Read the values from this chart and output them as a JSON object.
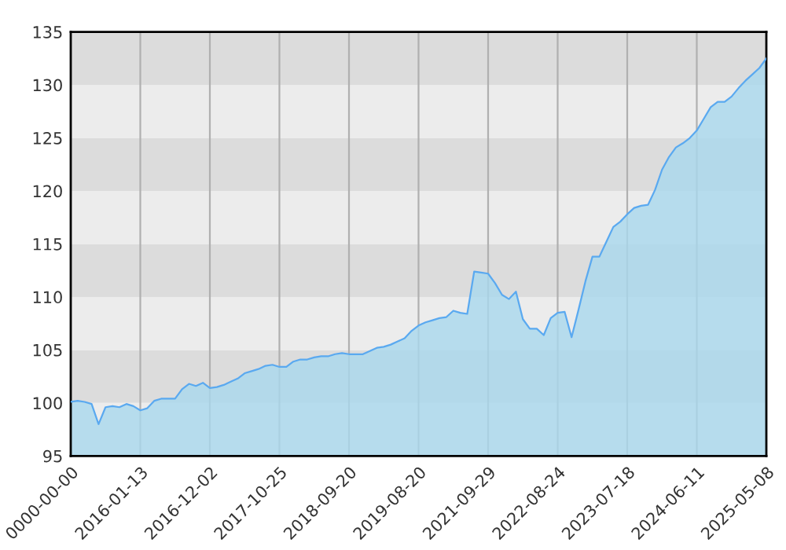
{
  "chart_data": {
    "type": "area",
    "categories": [
      "0000-00-00",
      null,
      null,
      null,
      null,
      null,
      null,
      null,
      null,
      null,
      "2016-01-13",
      null,
      null,
      null,
      null,
      null,
      null,
      null,
      null,
      null,
      "2016-12-02",
      null,
      null,
      null,
      null,
      null,
      null,
      null,
      null,
      null,
      "2017-10-25",
      null,
      null,
      null,
      null,
      null,
      null,
      null,
      null,
      null,
      "2018-09-20",
      null,
      null,
      null,
      null,
      null,
      null,
      null,
      null,
      null,
      "2019-08-20",
      null,
      null,
      null,
      null,
      null,
      null,
      null,
      null,
      null,
      "2021-09-29",
      null,
      null,
      null,
      null,
      null,
      null,
      null,
      null,
      null,
      "2022-08-24",
      null,
      null,
      null,
      null,
      null,
      null,
      null,
      null,
      null,
      "2023-07-18",
      null,
      null,
      null,
      null,
      null,
      null,
      null,
      null,
      null,
      "2024-06-11",
      null,
      null,
      null,
      null,
      null,
      null,
      null,
      null,
      null,
      "2025-05-08"
    ],
    "series": [
      {
        "color": "#5aa9f0",
        "values": [
          100.1,
          100.2,
          100.1,
          99.9,
          98.0,
          99.6,
          99.7,
          99.6,
          99.9,
          99.7,
          99.3,
          99.5,
          100.2,
          100.4,
          100.4,
          100.4,
          101.3,
          101.8,
          101.6,
          101.9,
          101.4,
          101.5,
          101.7,
          102.0,
          102.3,
          102.8,
          103.0,
          103.2,
          103.5,
          103.6,
          103.4,
          103.4,
          103.9,
          104.1,
          104.1,
          104.3,
          104.4,
          104.4,
          104.6,
          104.7,
          104.6,
          104.6,
          104.6,
          104.9,
          105.2,
          105.3,
          105.5,
          105.8,
          106.1,
          106.8,
          107.3,
          107.6,
          107.8,
          108.0,
          108.1,
          108.7,
          108.5,
          108.4,
          112.4,
          112.3,
          112.2,
          111.3,
          110.2,
          109.8,
          110.5,
          107.9,
          107.0,
          107.0,
          106.4,
          108.0,
          108.5,
          108.6,
          106.2,
          108.8,
          111.5,
          113.8,
          113.8,
          115.2,
          116.6,
          117.1,
          117.8,
          118.4,
          118.6,
          118.7,
          120.1,
          122.0,
          123.2,
          124.1,
          124.5,
          125.0,
          125.7,
          126.8,
          127.9,
          128.4,
          128.4,
          128.9,
          129.7,
          130.4,
          131.0,
          131.6,
          132.5
        ]
      }
    ],
    "ylim": [
      95,
      135
    ],
    "yticks": [
      95,
      100,
      105,
      110,
      115,
      120,
      125,
      130,
      135
    ],
    "grid": "x",
    "bands": [
      {
        "axis": "y",
        "from": 95,
        "to": 100,
        "color": "#ececec"
      },
      {
        "axis": "y",
        "from": 100,
        "to": 105,
        "color": "#dcdcdc"
      },
      {
        "axis": "y",
        "from": 105,
        "to": 110,
        "color": "#ececec"
      },
      {
        "axis": "y",
        "from": 110,
        "to": 115,
        "color": "#dcdcdc"
      },
      {
        "axis": "y",
        "from": 115,
        "to": 120,
        "color": "#ececec"
      },
      {
        "axis": "y",
        "from": 120,
        "to": 125,
        "color": "#dcdcdc"
      },
      {
        "axis": "y",
        "from": 125,
        "to": 130,
        "color": "#ececec"
      },
      {
        "axis": "y",
        "from": 130,
        "to": 135,
        "color": "#dcdcdc"
      }
    ]
  }
}
